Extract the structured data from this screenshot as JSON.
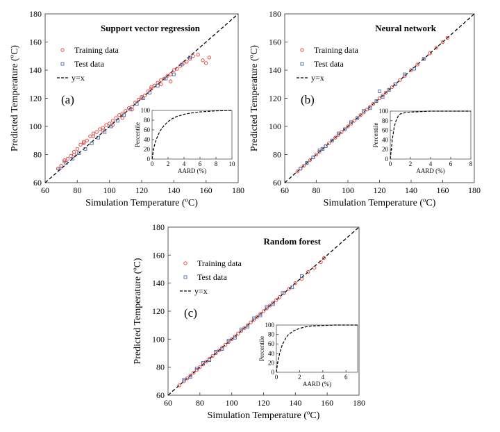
{
  "chart_data": [
    {
      "type": "scatter",
      "panel_label": "(a)",
      "title": "Support vector regression",
      "xlabel": "Simulation Temperature (ºC)",
      "ylabel": "Predicted Temperature (ºC)",
      "xlim": [
        60,
        180
      ],
      "ylim": [
        60,
        180
      ],
      "xticks": [
        "60",
        "80",
        "100",
        "120",
        "140",
        "160",
        "180"
      ],
      "yticks": [
        "60",
        "80",
        "100",
        "120",
        "140",
        "160",
        "180"
      ],
      "legend": {
        "position": "upper-left",
        "training": "Training data",
        "test": "Test data",
        "line": "y=x"
      },
      "series": [
        {
          "name": "Training data",
          "color": "#e03c3c",
          "marker": "circle",
          "x": [
            68,
            70,
            72,
            74,
            76,
            78,
            80,
            82,
            84,
            86,
            88,
            90,
            92,
            94,
            96,
            98,
            100,
            102,
            104,
            106,
            108,
            110,
            112,
            114,
            116,
            118,
            120,
            122,
            124,
            126,
            128,
            130,
            132,
            134,
            136,
            138,
            140,
            142,
            144,
            146,
            148,
            150,
            152,
            155,
            158,
            160,
            162,
            72,
            78,
            84,
            90,
            96,
            102,
            108,
            114,
            120,
            126,
            132,
            138
          ],
          "y": [
            70,
            72,
            75,
            77,
            79,
            82,
            84,
            87,
            89,
            90,
            93,
            95,
            96,
            98,
            99,
            101,
            102,
            104,
            106,
            108,
            109,
            111,
            113,
            114,
            117,
            119,
            120,
            122,
            125,
            127,
            129,
            131,
            133,
            134,
            136,
            137,
            140,
            141,
            143,
            145,
            146,
            148,
            150,
            151,
            147,
            145,
            149,
            76,
            80,
            88,
            93,
            97,
            101,
            106,
            112,
            121,
            128,
            130,
            132
          ]
        },
        {
          "name": "Test data",
          "color": "#4a6aa5",
          "marker": "square",
          "x": [
            69,
            73,
            77,
            81,
            85,
            89,
            93,
            97,
            101,
            105,
            109,
            113,
            117,
            121,
            125,
            130,
            135,
            140,
            145,
            150
          ],
          "y": [
            70,
            74,
            77,
            81,
            84,
            88,
            92,
            96,
            100,
            104,
            108,
            112,
            116,
            120,
            124,
            129,
            134,
            137,
            144,
            149
          ]
        }
      ],
      "inset": {
        "xlabel": "AARD (%)",
        "ylabel": "Percentile",
        "xlim": [
          0,
          10
        ],
        "ylim": [
          0,
          100
        ],
        "xticks": [
          "0",
          "2",
          "4",
          "6",
          "8",
          "10"
        ],
        "yticks": [
          "0",
          "20",
          "40",
          "60",
          "80",
          "100"
        ],
        "curve": {
          "x": [
            0,
            0.2,
            0.5,
            1,
            1.5,
            2,
            2.5,
            3,
            4,
            5,
            6,
            7,
            8,
            10
          ],
          "y": [
            0,
            22,
            40,
            58,
            69,
            77,
            83,
            87,
            92,
            95,
            97,
            98,
            99,
            100
          ]
        }
      }
    },
    {
      "type": "scatter",
      "panel_label": "(b)",
      "title": "Neural network",
      "xlabel": "Simulation Temperature (ºC)",
      "ylabel": "Predicted Temperature (ºC)",
      "xlim": [
        60,
        180
      ],
      "ylim": [
        60,
        180
      ],
      "xticks": [
        "60",
        "80",
        "100",
        "120",
        "140",
        "160",
        "180"
      ],
      "yticks": [
        "60",
        "80",
        "100",
        "120",
        "140",
        "160",
        "180"
      ],
      "legend": {
        "position": "upper-left",
        "training": "Training data",
        "test": "Test data",
        "line": "y=x"
      },
      "series": [
        {
          "name": "Training data",
          "color": "#e03c3c",
          "marker": "circle",
          "x": [
            68,
            70,
            72,
            74,
            76,
            78,
            80,
            82,
            84,
            86,
            88,
            90,
            92,
            94,
            96,
            98,
            100,
            102,
            104,
            106,
            108,
            110,
            112,
            114,
            116,
            118,
            120,
            122,
            124,
            126,
            128,
            130,
            133,
            136,
            140,
            144,
            148,
            152,
            156,
            160,
            163
          ],
          "y": [
            68,
            70,
            72,
            74,
            76,
            78,
            80,
            82,
            84,
            86,
            88,
            90,
            92,
            94,
            96,
            98,
            100,
            102,
            104,
            106,
            108,
            110,
            112,
            114,
            116,
            118,
            120,
            122,
            124,
            126,
            128,
            130,
            133,
            136,
            140,
            144,
            148,
            152,
            156,
            160,
            163
          ]
        },
        {
          "name": "Test data",
          "color": "#4a6aa5",
          "marker": "square",
          "x": [
            70,
            74,
            78,
            82,
            84,
            86,
            90,
            94,
            98,
            102,
            106,
            110,
            114,
            118,
            122,
            126,
            130,
            136,
            142,
            148,
            120
          ],
          "y": [
            70,
            74,
            78,
            83,
            84,
            86,
            90,
            95,
            98,
            103,
            106,
            111,
            113,
            118,
            121,
            126,
            130,
            137,
            141,
            148,
            125
          ]
        }
      ],
      "inset": {
        "xlabel": "AARD (%)",
        "ylabel": "Percentile",
        "xlim": [
          0,
          8
        ],
        "ylim": [
          0,
          100
        ],
        "xticks": [
          "0",
          "2",
          "4",
          "6",
          "8"
        ],
        "yticks": [
          "0",
          "20",
          "40",
          "60",
          "80",
          "100"
        ],
        "curve": {
          "x": [
            0,
            0.2,
            0.4,
            0.6,
            0.8,
            1,
            1.5,
            2,
            3,
            4,
            6,
            8
          ],
          "y": [
            0,
            40,
            68,
            82,
            90,
            94,
            97,
            98,
            99,
            100,
            100,
            100
          ]
        }
      }
    },
    {
      "type": "scatter",
      "panel_label": "(c)",
      "title": "Random forest",
      "xlabel": "Simulation Temperature (ºC)",
      "ylabel": "Predicted Temperature (ºC)",
      "xlim": [
        60,
        180
      ],
      "ylim": [
        60,
        180
      ],
      "xticks": [
        "60",
        "80",
        "100",
        "120",
        "140",
        "160",
        "180"
      ],
      "yticks": [
        "60",
        "80",
        "100",
        "120",
        "140",
        "160",
        "180"
      ],
      "legend": {
        "position": "upper-left",
        "training": "Training data",
        "test": "Test data",
        "line": "y=x"
      },
      "series": [
        {
          "name": "Training data",
          "color": "#e03c3c",
          "marker": "circle",
          "x": [
            67,
            70,
            72,
            74,
            76,
            78,
            80,
            82,
            84,
            86,
            88,
            90,
            92,
            94,
            96,
            98,
            100,
            102,
            104,
            106,
            108,
            110,
            112,
            114,
            116,
            118,
            120,
            122,
            124,
            126,
            128,
            130,
            133,
            136,
            140,
            144,
            148,
            152,
            156,
            158
          ],
          "y": [
            67,
            70,
            72,
            74,
            76,
            78,
            80,
            82,
            84,
            86,
            88,
            90,
            92,
            94,
            96,
            98,
            100,
            102,
            104,
            106,
            108,
            110,
            112,
            114,
            116,
            118,
            120,
            122,
            124,
            126,
            128,
            130,
            133,
            136,
            140,
            143,
            148,
            151,
            155,
            158
          ]
        },
        {
          "name": "Test data",
          "color": "#4a6aa5",
          "marker": "square",
          "x": [
            70,
            74,
            78,
            82,
            86,
            90,
            94,
            98,
            102,
            106,
            110,
            114,
            118,
            122,
            126,
            132,
            138,
            144
          ],
          "y": [
            71,
            73,
            79,
            83,
            85,
            91,
            93,
            99,
            101,
            107,
            109,
            115,
            117,
            123,
            125,
            133,
            137,
            145
          ]
        }
      ],
      "inset": {
        "xlabel": "AARD (%)",
        "ylabel": "Percentile",
        "xlim": [
          0,
          7
        ],
        "ylim": [
          0,
          100
        ],
        "xticks": [
          "0",
          "2",
          "4",
          "6"
        ],
        "yticks": [
          "0",
          "20",
          "40",
          "60",
          "80",
          "100"
        ],
        "curve": {
          "x": [
            0,
            0.1,
            0.3,
            0.5,
            0.8,
            1,
            1.5,
            2,
            2.5,
            3,
            4,
            5,
            7
          ],
          "y": [
            0,
            20,
            42,
            58,
            72,
            79,
            88,
            93,
            96,
            98,
            99,
            100,
            100
          ]
        }
      }
    }
  ]
}
